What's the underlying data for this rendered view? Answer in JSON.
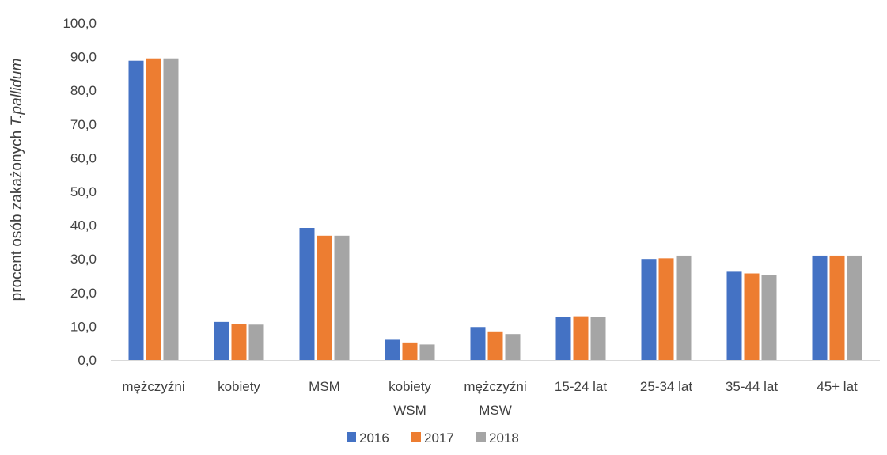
{
  "chart_data": {
    "type": "bar",
    "title": "",
    "xlabel": "",
    "ylabel": "procent osób zakażonych",
    "ylabel_italic": "T.pallidum",
    "ylim": [
      0,
      100
    ],
    "ytick_step": 10,
    "ytick_labels": [
      "0,0",
      "10,0",
      "20,0",
      "30,0",
      "40,0",
      "50,0",
      "60,0",
      "70,0",
      "80,0",
      "90,0",
      "100,0"
    ],
    "grid": false,
    "legend_position": "bottom",
    "categories": [
      [
        "mężczyźni"
      ],
      [
        "kobiety"
      ],
      [
        "MSM"
      ],
      [
        "kobiety",
        "WSM"
      ],
      [
        "mężczyźni",
        "MSW"
      ],
      [
        "15-24 lat"
      ],
      [
        "25-34 lat"
      ],
      [
        "35-44 lat"
      ],
      [
        "45+ lat"
      ]
    ],
    "series": [
      {
        "name": "2016",
        "color": "#4472C4",
        "values": [
          88.8,
          11.3,
          39.2,
          6.0,
          9.8,
          12.7,
          30.0,
          26.2,
          31.0
        ]
      },
      {
        "name": "2017",
        "color": "#ED7D31",
        "values": [
          89.5,
          10.6,
          36.9,
          5.2,
          8.5,
          13.0,
          30.2,
          25.7,
          31.0
        ]
      },
      {
        "name": "2018",
        "color": "#A5A5A5",
        "values": [
          89.5,
          10.5,
          36.9,
          4.6,
          7.7,
          12.9,
          31.0,
          25.2,
          31.0
        ]
      }
    ]
  }
}
